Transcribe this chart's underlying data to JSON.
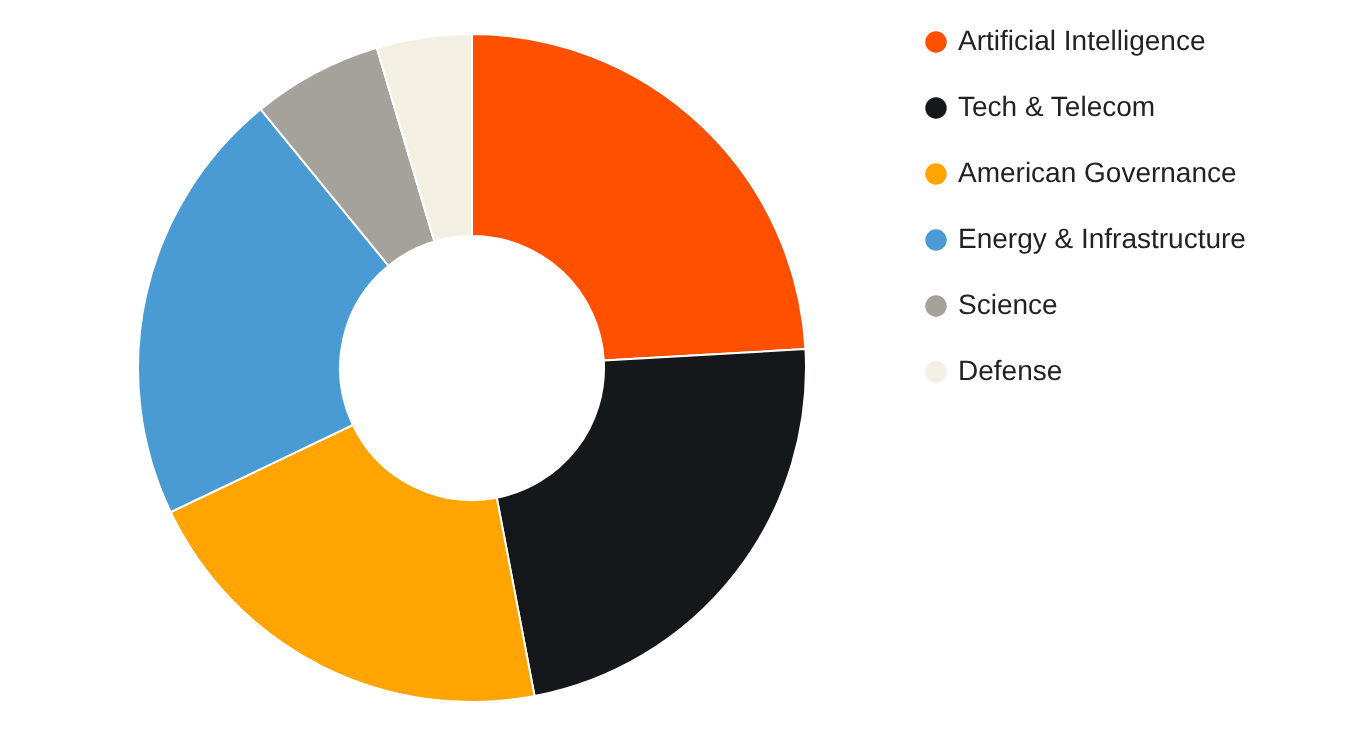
{
  "chart_data": {
    "type": "donut",
    "categories": [
      "Artificial Intelligence",
      "Tech & Telecom",
      "American Governance",
      "Energy & Infrastructure",
      "Science",
      "Defense"
    ],
    "values": [
      24.1,
      22.9,
      20.9,
      21.2,
      6.3,
      4.6
    ],
    "colors": [
      "#ff5000",
      "#16171b",
      "#ffa400",
      "#4a9ad4",
      "#a5a29c",
      "#f3efe3"
    ],
    "legend": "right"
  }
}
